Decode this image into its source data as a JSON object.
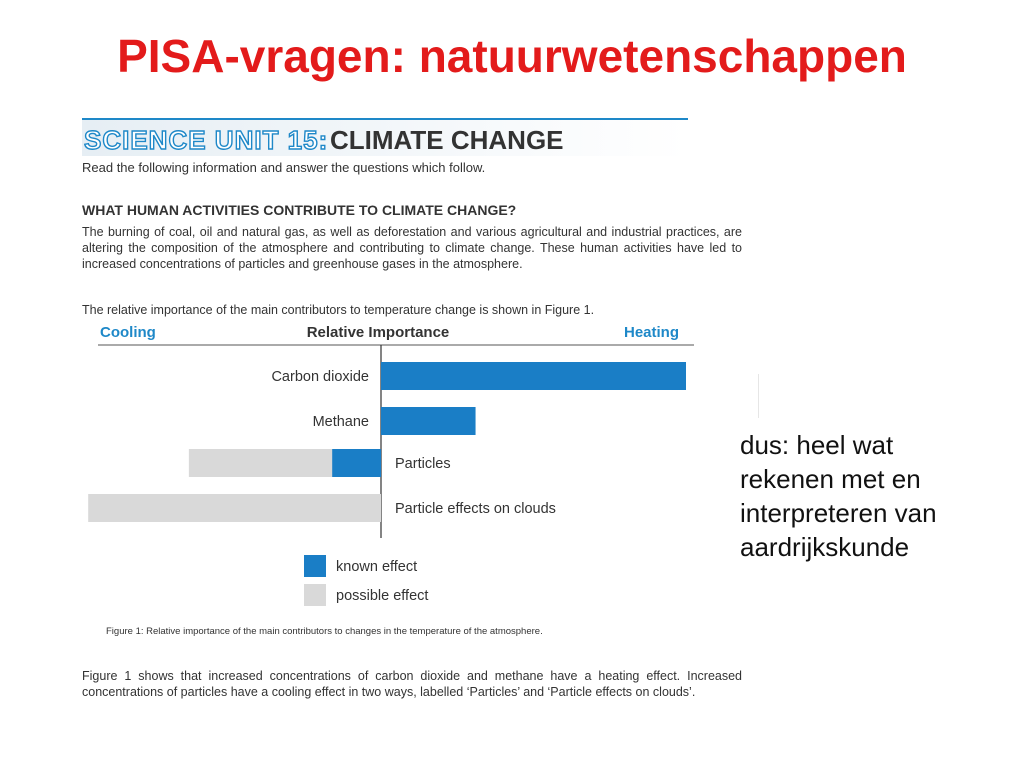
{
  "slide": {
    "title": "PISA-vragen: natuurwetenschappen",
    "side_note_lines": [
      "dus: heel wat",
      "rekenen met en",
      "interpreteren van",
      "aardrijkskunde"
    ]
  },
  "document": {
    "unit_label": "SCIENCE UNIT 15:",
    "unit_title": "CLIMATE CHANGE",
    "intro": "Read the following information and answer the questions which follow.",
    "question_heading": "WHAT HUMAN ACTIVITIES CONTRIBUTE TO CLIMATE CHANGE?",
    "paragraph1": "The burning of coal, oil and natural gas, as well as deforestation and various agricultural and industrial practices, are altering the composition of the atmosphere and contributing to climate change. These human activities have led to increased concentrations of particles and greenhouse gases in the atmosphere.",
    "paragraph2": "The relative importance of the main contributors to temperature change is shown in Figure 1.",
    "figure_caption": "Figure 1: Relative importance of the main contributors to changes in the temperature of the atmosphere.",
    "paragraph3": "Figure 1 shows that increased concentrations of carbon dioxide and methane have a heating effect. Increased concentrations of particles have a cooling effect in two ways, labelled ‘Particles’ and ‘Particle effects on clouds’."
  },
  "chart_data": {
    "type": "bar",
    "orientation": "horizontal-diverging",
    "header_left": "Cooling",
    "header_center": "Relative Importance",
    "header_right": "Heating",
    "categories": [
      "Carbon dioxide",
      "Methane",
      "Particles",
      "Particle effects on clouds"
    ],
    "series": [
      {
        "name": "known effect",
        "color": "#1a7ec6",
        "values": [
          1.0,
          0.31,
          -0.16,
          0
        ]
      },
      {
        "name": "possible effect",
        "color": "#d9d9d9",
        "values": [
          0,
          0,
          -0.63,
          -0.96
        ]
      }
    ],
    "xlim": [
      -1.0,
      1.0
    ],
    "legend_position": "below",
    "accent_color": "#1e88c8"
  }
}
